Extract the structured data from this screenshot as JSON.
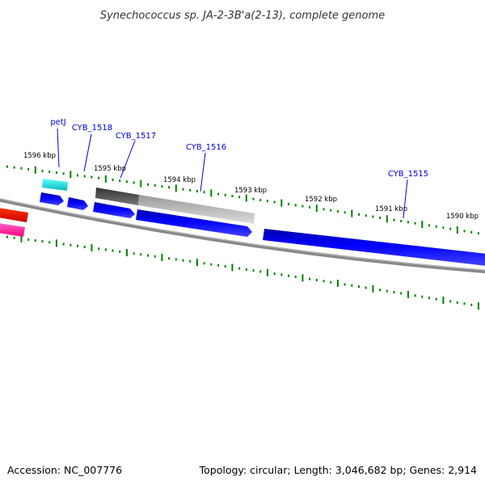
{
  "title": "Synechococcus sp. JA-2-3B'a(2-13), complete genome",
  "footer": {
    "accession": "Accession: NC_007776",
    "summary": "Topology: circular; Length: 3,046,682 bp; Genes: 2,914"
  },
  "kbp_labels": [
    "1596 kbp",
    "1595 kbp",
    "1594 kbp",
    "1593 kbp",
    "1592 kbp",
    "1591 kbp",
    "1590 kbp"
  ],
  "gene_labels": [
    "petJ",
    "CYB_1518",
    "CYB_1517",
    "CYB_1516",
    "CYB_1515"
  ],
  "colors": {
    "backbone": "#808080",
    "tick": "#008000",
    "label_line": "#0000cc",
    "cds": "#0000ee",
    "pseudo_dark": "#555555",
    "pseudo_light": "#bbbbbb",
    "cyan_feature": "#00dddd",
    "red_feature": "#ee0000",
    "pink_feature": "#ff3399"
  }
}
